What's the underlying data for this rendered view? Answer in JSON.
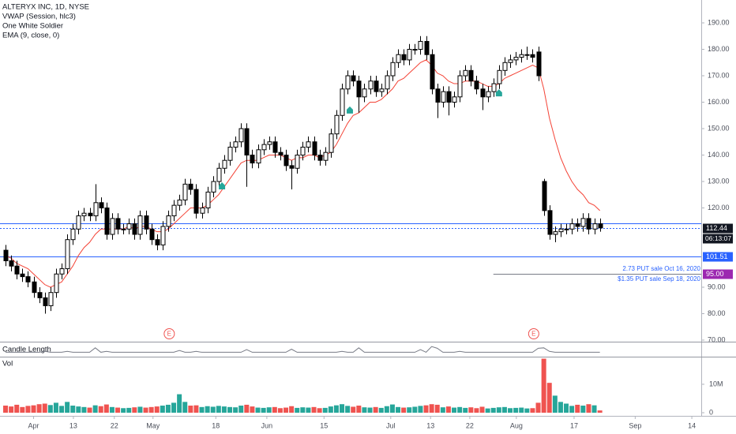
{
  "chart_data": {
    "type": "candlestick",
    "title": "ALTERYX INC, 1D, NYSE",
    "indicators": [
      "VWAP (Session, hlc3)",
      "One White Soldier",
      "EMA (9, close, 0)"
    ],
    "open": [
      104,
      100,
      98,
      95,
      94,
      92,
      88,
      86,
      83,
      88,
      95,
      97,
      108,
      112,
      117,
      118,
      117,
      122,
      120,
      110,
      116,
      112,
      112,
      114,
      110,
      117,
      112,
      108,
      106,
      113,
      117,
      121,
      123,
      129,
      127,
      118,
      120,
      126,
      130,
      135,
      138,
      143,
      145,
      150,
      140,
      137,
      142,
      144,
      145,
      141,
      140,
      136,
      135,
      140,
      143,
      145,
      140,
      138,
      141,
      148,
      155,
      165,
      170,
      168,
      162,
      165,
      168,
      164,
      165,
      170,
      175,
      178,
      176,
      180,
      180,
      183,
      178,
      165,
      160,
      164,
      160,
      162,
      170,
      172,
      168,
      165,
      162,
      164,
      167,
      172,
      175,
      176,
      177,
      178,
      178,
      179,
      130,
      119,
      110,
      111,
      112,
      112,
      114,
      113,
      116,
      112,
      114
    ],
    "high": [
      106,
      102,
      100,
      97,
      96,
      94,
      90,
      88,
      90,
      97,
      99,
      110,
      114,
      119,
      120,
      120,
      129,
      124,
      122,
      118,
      118,
      114,
      116,
      116,
      119,
      119,
      114,
      110,
      115,
      119,
      123,
      125,
      131,
      131,
      129,
      122,
      128,
      132,
      137,
      140,
      145,
      147,
      152,
      152,
      142,
      144,
      146,
      147,
      147,
      143,
      142,
      138,
      142,
      145,
      147,
      147,
      142,
      143,
      150,
      157,
      167,
      172,
      172,
      170,
      167,
      170,
      170,
      167,
      172,
      177,
      180,
      180,
      182,
      182,
      185,
      185,
      180,
      167,
      166,
      166,
      164,
      172,
      174,
      174,
      170,
      167,
      166,
      169,
      174,
      177,
      178,
      179,
      180,
      181,
      180,
      181,
      131,
      121,
      113,
      114,
      114,
      116,
      116,
      118,
      118,
      116,
      116
    ],
    "low": [
      98,
      96,
      93,
      92,
      90,
      86,
      84,
      80,
      81,
      86,
      93,
      95,
      106,
      110,
      115,
      115,
      115,
      118,
      108,
      108,
      110,
      110,
      110,
      108,
      108,
      110,
      106,
      104,
      104,
      111,
      115,
      119,
      121,
      125,
      116,
      116,
      118,
      124,
      128,
      133,
      136,
      141,
      143,
      128,
      135,
      135,
      140,
      142,
      139,
      138,
      134,
      127,
      133,
      138,
      141,
      138,
      136,
      136,
      139,
      146,
      153,
      163,
      166,
      156,
      160,
      163,
      162,
      162,
      163,
      168,
      173,
      174,
      174,
      178,
      178,
      176,
      163,
      154,
      158,
      155,
      158,
      160,
      168,
      166,
      163,
      157,
      160,
      162,
      165,
      170,
      173,
      174,
      175,
      176,
      175,
      168,
      117,
      108,
      107,
      109,
      110,
      110,
      111,
      111,
      110,
      110,
      111
    ],
    "close": [
      100,
      98,
      95,
      94,
      92,
      88,
      86,
      83,
      88,
      95,
      97,
      108,
      112,
      117,
      118,
      117,
      122,
      120,
      110,
      116,
      112,
      112,
      114,
      110,
      117,
      112,
      108,
      106,
      113,
      117,
      121,
      123,
      129,
      127,
      118,
      120,
      126,
      130,
      135,
      138,
      143,
      145,
      150,
      140,
      137,
      142,
      144,
      145,
      141,
      140,
      136,
      135,
      140,
      143,
      145,
      140,
      138,
      141,
      148,
      155,
      165,
      170,
      168,
      162,
      165,
      168,
      164,
      165,
      170,
      175,
      178,
      176,
      180,
      180,
      183,
      178,
      165,
      160,
      164,
      160,
      162,
      170,
      172,
      168,
      165,
      162,
      164,
      167,
      172,
      175,
      176,
      177,
      178,
      178,
      177,
      170,
      119,
      110,
      111,
      112,
      112,
      114,
      113,
      116,
      112,
      114,
      112.44
    ],
    "ema": {
      "name": "EMA (9, close, 0)",
      "color": "#f44336",
      "values": [
        102,
        101,
        99,
        98,
        97,
        95,
        93,
        91,
        90,
        91,
        92,
        95,
        98,
        102,
        105,
        107,
        110,
        112,
        112,
        112,
        112,
        112,
        113,
        112,
        113,
        113,
        112,
        111,
        111,
        112,
        114,
        116,
        118,
        120,
        120,
        120,
        121,
        123,
        125,
        128,
        131,
        134,
        137,
        138,
        138,
        138,
        139,
        140,
        140,
        140,
        139,
        138,
        139,
        139,
        140,
        140,
        139,
        140,
        141,
        144,
        148,
        152,
        155,
        156,
        158,
        160,
        160,
        161,
        163,
        165,
        168,
        169,
        171,
        173,
        175,
        176,
        174,
        171,
        170,
        168,
        167,
        167,
        168,
        168,
        168,
        167,
        166,
        166,
        167,
        169,
        170,
        171,
        172,
        173,
        174,
        173,
        165,
        154,
        146,
        139,
        134,
        130,
        127,
        125,
        122,
        121,
        119
      ]
    },
    "up_color": "#ffffff",
    "down_color": "#000000",
    "ylim": [
      69.4,
      198.66
    ],
    "yticks": [
      {
        "value": 190,
        "label": "190.00"
      },
      {
        "value": 180,
        "label": "180.00"
      },
      {
        "value": 170,
        "label": "170.00"
      },
      {
        "value": 160,
        "label": "160.00"
      },
      {
        "value": 150,
        "label": "150.00"
      },
      {
        "value": 140,
        "label": "140.00"
      },
      {
        "value": 130,
        "label": "130.00"
      },
      {
        "value": 120,
        "label": "120.00"
      },
      {
        "value": 90,
        "label": "90.00"
      },
      {
        "value": 80,
        "label": "80.00"
      },
      {
        "value": 70,
        "label": "70.00"
      }
    ],
    "xlim": [
      -0.99,
      124.08
    ],
    "xticks": [
      {
        "value": 5,
        "label": "Apr"
      },
      {
        "value": 12.1,
        "label": "13"
      },
      {
        "value": 19.4,
        "label": "22"
      },
      {
        "value": 26.3,
        "label": "May"
      },
      {
        "value": 37.5,
        "label": "18"
      },
      {
        "value": 46.6,
        "label": "Jun"
      },
      {
        "value": 56.8,
        "label": "15"
      },
      {
        "value": 68.7,
        "label": "Jul"
      },
      {
        "value": 75.8,
        "label": "13"
      },
      {
        "value": 82.8,
        "label": "22"
      },
      {
        "value": 91.1,
        "label": "Aug"
      },
      {
        "value": 101.4,
        "label": "17"
      },
      {
        "value": 112.3,
        "label": "Sep"
      },
      {
        "value": 122.4,
        "label": "14"
      }
    ],
    "hlines": [
      {
        "value": 114.2,
        "color": "#2962ff",
        "style": "solid"
      },
      {
        "value": 112.44,
        "label": "112.44",
        "color": "#2962ff",
        "style": "dotted",
        "label_color": "#131722"
      },
      {
        "value": 101.51,
        "label": "101.51",
        "color": "#2962ff",
        "style": "solid",
        "label_color": "#2962ff"
      },
      {
        "value": 95,
        "label": "95.00",
        "color": "#787b86",
        "style": "solid",
        "label_color": "#9c27b0",
        "start": 87.0
      }
    ],
    "countdown": "06:13:07",
    "annotations": [
      "2.73 PUT sale Oct 16, 2020",
      "$1.35 PUT sale Sep 18, 2020"
    ],
    "earnings": [
      {
        "x": 29.2,
        "label": "E"
      },
      {
        "x": 94.2,
        "label": "E"
      }
    ],
    "signals": {
      "name": "One White Soldier",
      "color": "#26a69a",
      "x": [
        38.6,
        61.4,
        88.0
      ],
      "values": [
        128.2,
        156.9,
        163.4
      ]
    },
    "candle_length": {
      "name": "Candle Length",
      "color": "#787b86",
      "ylim": [
        -6,
        28
      ],
      "values": [
        4,
        4,
        4,
        4,
        4,
        4,
        4,
        6,
        4,
        4,
        4,
        6,
        4,
        4,
        4,
        4,
        14,
        4,
        6,
        4,
        4,
        4,
        4,
        4,
        4,
        4,
        4,
        4,
        4,
        4,
        4,
        8,
        4,
        4,
        6,
        4,
        4,
        4,
        4,
        4,
        4,
        4,
        4,
        10,
        4,
        4,
        4,
        4,
        4,
        4,
        4,
        11,
        4,
        4,
        4,
        4,
        4,
        4,
        4,
        4,
        6,
        4,
        4,
        14,
        4,
        4,
        4,
        4,
        4,
        4,
        4,
        4,
        4,
        4,
        10,
        4,
        17,
        13,
        4,
        4,
        4,
        6,
        4,
        4,
        4,
        4,
        4,
        4,
        4,
        4,
        4,
        4,
        4,
        4,
        4,
        13,
        14,
        6,
        4,
        4,
        4,
        4,
        4,
        4,
        4,
        4,
        4
      ]
    },
    "volume": {
      "name": "Vol",
      "up_color": "#26a69a",
      "down_color": "#ef5350",
      "ylim": [
        -1100000,
        19700000
      ],
      "yticks": [
        {
          "value": 10000000,
          "label": "10M"
        },
        0
      ],
      "values": [
        2500000.0,
        2200000.0,
        2800000.0,
        2000000.0,
        2400000.0,
        2600000.0,
        3000000.0,
        3200000.0,
        2700000.0,
        3500000.0,
        2400000.0,
        3800000.0,
        2500000.0,
        2200000.0,
        2000000.0,
        1800000.0,
        2600000.0,
        2300000.0,
        2900000.0,
        2000000.0,
        1800000.0,
        1600000.0,
        1700000.0,
        1900000.0,
        2100000.0,
        1800000.0,
        2000000.0,
        2200000.0,
        2500000.0,
        2800000.0,
        3500000.0,
        6500000.0,
        3800000.0,
        2500000.0,
        2600000.0,
        2000000.0,
        2300000.0,
        2100000.0,
        2400000.0,
        2200000.0,
        2000000.0,
        1900000.0,
        2500000.0,
        2800000.0,
        2200000.0,
        1800000.0,
        1700000.0,
        1900000.0,
        2000000.0,
        1600000.0,
        1800000.0,
        2300000.0,
        1700000.0,
        1900000.0,
        1800000.0,
        2000000.0,
        1600000.0,
        1700000.0,
        2200000.0,
        2600000.0,
        3000000.0,
        2400000.0,
        2100000.0,
        2500000.0,
        1900000.0,
        1800000.0,
        2000000.0,
        1700000.0,
        2300000.0,
        2900000.0,
        2000000.0,
        1800000.0,
        1900000.0,
        2100000.0,
        2400000.0,
        2600000.0,
        3000000.0,
        2800000.0,
        1900000.0,
        2200000.0,
        1800000.0,
        2000000.0,
        1700000.0,
        1900000.0,
        1600000.0,
        2100000.0,
        1500000.0,
        1700000.0,
        1900000.0,
        2000000.0,
        1600000.0,
        1700000.0,
        1800000.0,
        1500000.0,
        1600000.0,
        3500000.0,
        19000000.0,
        10500000.0,
        6000000.0,
        3800000.0,
        3200000.0,
        2400000.0,
        2800000.0,
        2500000.0,
        3000000.0,
        2600000.0,
        800000.0
      ]
    }
  }
}
